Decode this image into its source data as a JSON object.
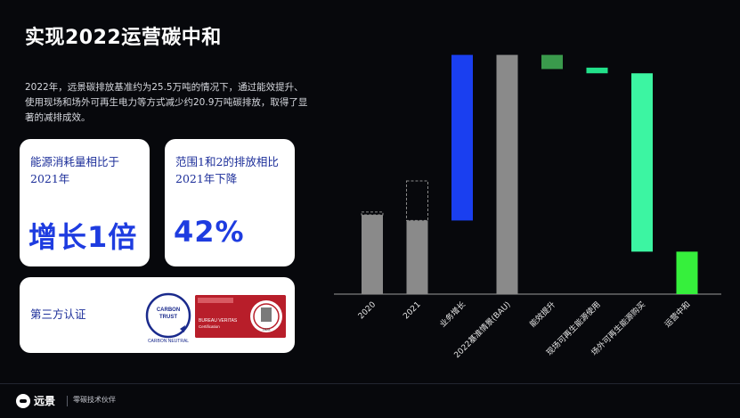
{
  "page": {
    "title": "实现2022运营碳中和",
    "description": "2022年，远景碳排放基准约为25.5万吨的情况下，通过能效提升、使用现场和场外可再生电力等方式减少约20.9万吨碳排放，取得了显著的减排成效。"
  },
  "cards": {
    "energy": {
      "label": "能源消耗量相比于2021年",
      "value": "增长1倍"
    },
    "scope": {
      "label": "范围1和2的排放相比2021年下降",
      "value": "42%"
    },
    "certification": {
      "label": "第三方认证",
      "carbon_trust": {
        "line1": "CARBON",
        "line2": "TRUST",
        "line3": "CARBON NEUTRAL"
      },
      "bureau_veritas": {
        "line1": "BUREAU VERITAS",
        "line2": "Certification",
        "line3": "1828"
      }
    }
  },
  "footer": {
    "brand": "远景",
    "slogan": "零碳技术伙伴"
  },
  "colors": {
    "gray": "#8a8a8a",
    "blue": "#1a3ff0",
    "dark_green": "#3a9a4c",
    "bright_green": "#22e08a",
    "mint": "#3cf5a2",
    "lime": "#36f03c",
    "card_blue": "#1e3ce0"
  },
  "chart_data": {
    "type": "bar",
    "subtype": "waterfall",
    "categories": [
      "2020",
      "2021",
      "业务增长",
      "2022基准情景(BAU)",
      "能效提升",
      "现场可再生能源使用",
      "场外可再生能源购买",
      "运营中和"
    ],
    "bars": [
      {
        "category": "2020",
        "start": 0,
        "end": 0.56,
        "color": "gray",
        "dashed_top": 0.58
      },
      {
        "category": "2021",
        "start": 0,
        "end": 0.52,
        "color": "gray",
        "dashed_top": 0.8
      },
      {
        "category": "业务增长",
        "start": 0.52,
        "end": 1.69,
        "color": "blue"
      },
      {
        "category": "2022基准情景(BAU)",
        "start": 0,
        "end": 1.69,
        "color": "gray"
      },
      {
        "category": "能效提升",
        "start": 1.59,
        "end": 1.69,
        "color": "dark_green"
      },
      {
        "category": "现场可再生能源使用",
        "start": 1.56,
        "end": 1.6,
        "color": "bright_green"
      },
      {
        "category": "场外可再生能源购买",
        "start": 0.3,
        "end": 1.56,
        "color": "mint"
      },
      {
        "category": "运营中和",
        "start": 0,
        "end": 0.3,
        "color": "lime"
      }
    ],
    "ylim": [
      0,
      1.7
    ],
    "title": "",
    "xlabel": "",
    "ylabel": "",
    "grid": false,
    "legend": "none"
  }
}
